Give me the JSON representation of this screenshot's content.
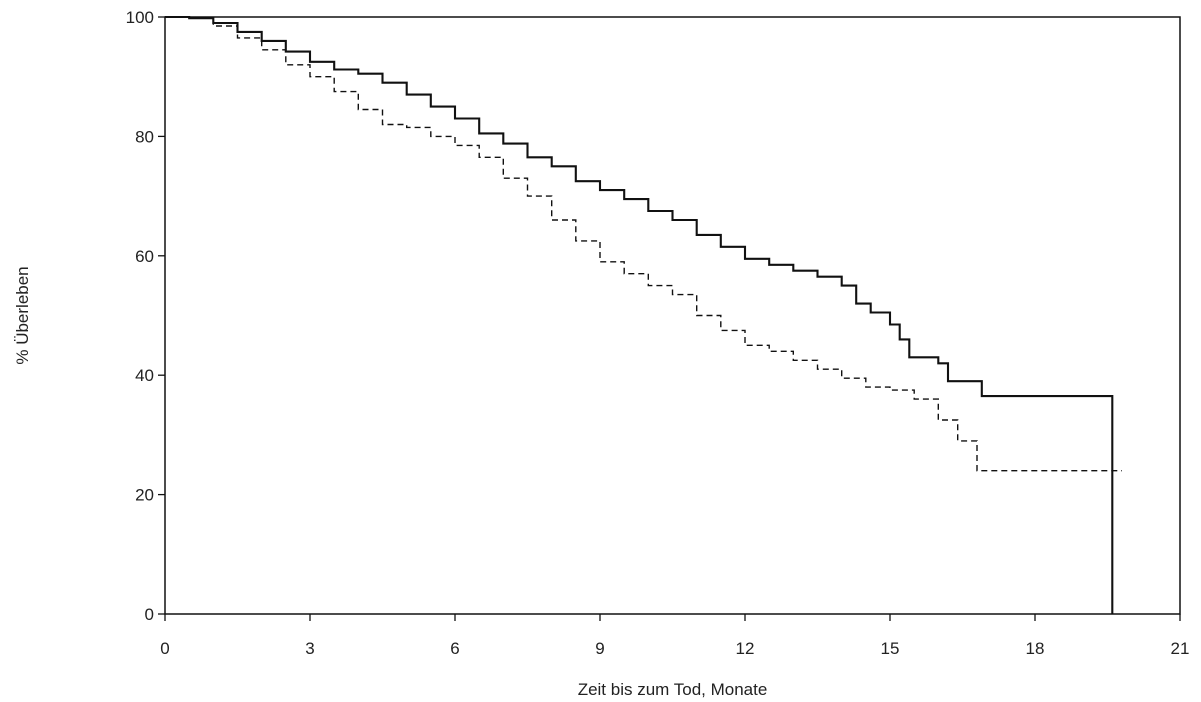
{
  "chart_data": {
    "type": "line",
    "title": "",
    "xlabel": "Zeit bis zum Tod, Monate",
    "ylabel": "% Überleben",
    "xlim": [
      0,
      21
    ],
    "ylim": [
      0,
      100
    ],
    "xticks": [
      "0",
      "3",
      "6",
      "9",
      "12",
      "15",
      "18",
      "21"
    ],
    "yticks": [
      "0",
      "20",
      "40",
      "60",
      "80",
      "100"
    ],
    "grid": false,
    "legend": "none",
    "series": [
      {
        "style": "solid",
        "color": "#111111",
        "x": [
          0,
          0.5,
          1.0,
          1.5,
          2.0,
          2.5,
          3.0,
          3.5,
          4.0,
          4.5,
          5.0,
          5.5,
          6.0,
          6.5,
          7.0,
          7.5,
          8.0,
          8.5,
          9.0,
          9.5,
          10.0,
          10.5,
          11.0,
          11.5,
          12.0,
          12.5,
          13.0,
          13.5,
          14.0,
          14.3,
          14.6,
          15.0,
          15.2,
          15.4,
          16.0,
          16.2,
          16.9,
          19.6,
          19.6
        ],
        "y": [
          100,
          99.8,
          99,
          97.5,
          96,
          94.2,
          92.5,
          91.2,
          90.5,
          89,
          87,
          85,
          83,
          80.5,
          78.8,
          76.5,
          75,
          72.5,
          71,
          69.5,
          67.5,
          66,
          63.5,
          61.5,
          59.5,
          58.5,
          57.5,
          56.5,
          55,
          52,
          50.5,
          48.5,
          46,
          43,
          42,
          39,
          36.5,
          36.5,
          0
        ]
      },
      {
        "style": "dashed",
        "color": "#111111",
        "x": [
          0,
          0.5,
          1.0,
          1.5,
          2.0,
          2.5,
          3.0,
          3.5,
          4.0,
          4.5,
          5.0,
          5.5,
          6.0,
          6.5,
          7.0,
          7.5,
          8.0,
          8.5,
          9.0,
          9.5,
          10.0,
          10.5,
          11.0,
          11.5,
          12.0,
          12.5,
          13.0,
          13.5,
          14.0,
          14.5,
          15.0,
          15.5,
          16.0,
          16.4,
          16.8,
          19.8
        ],
        "y": [
          100,
          99.8,
          98.5,
          96.5,
          94.5,
          92,
          90,
          87.5,
          84.5,
          82,
          81.5,
          80,
          78.5,
          76.5,
          73,
          70,
          66,
          62.5,
          59,
          57,
          55,
          53.5,
          50,
          47.5,
          45,
          44,
          42.5,
          41,
          39.5,
          38,
          37.5,
          36,
          32.5,
          29,
          24,
          24
        ]
      }
    ]
  }
}
